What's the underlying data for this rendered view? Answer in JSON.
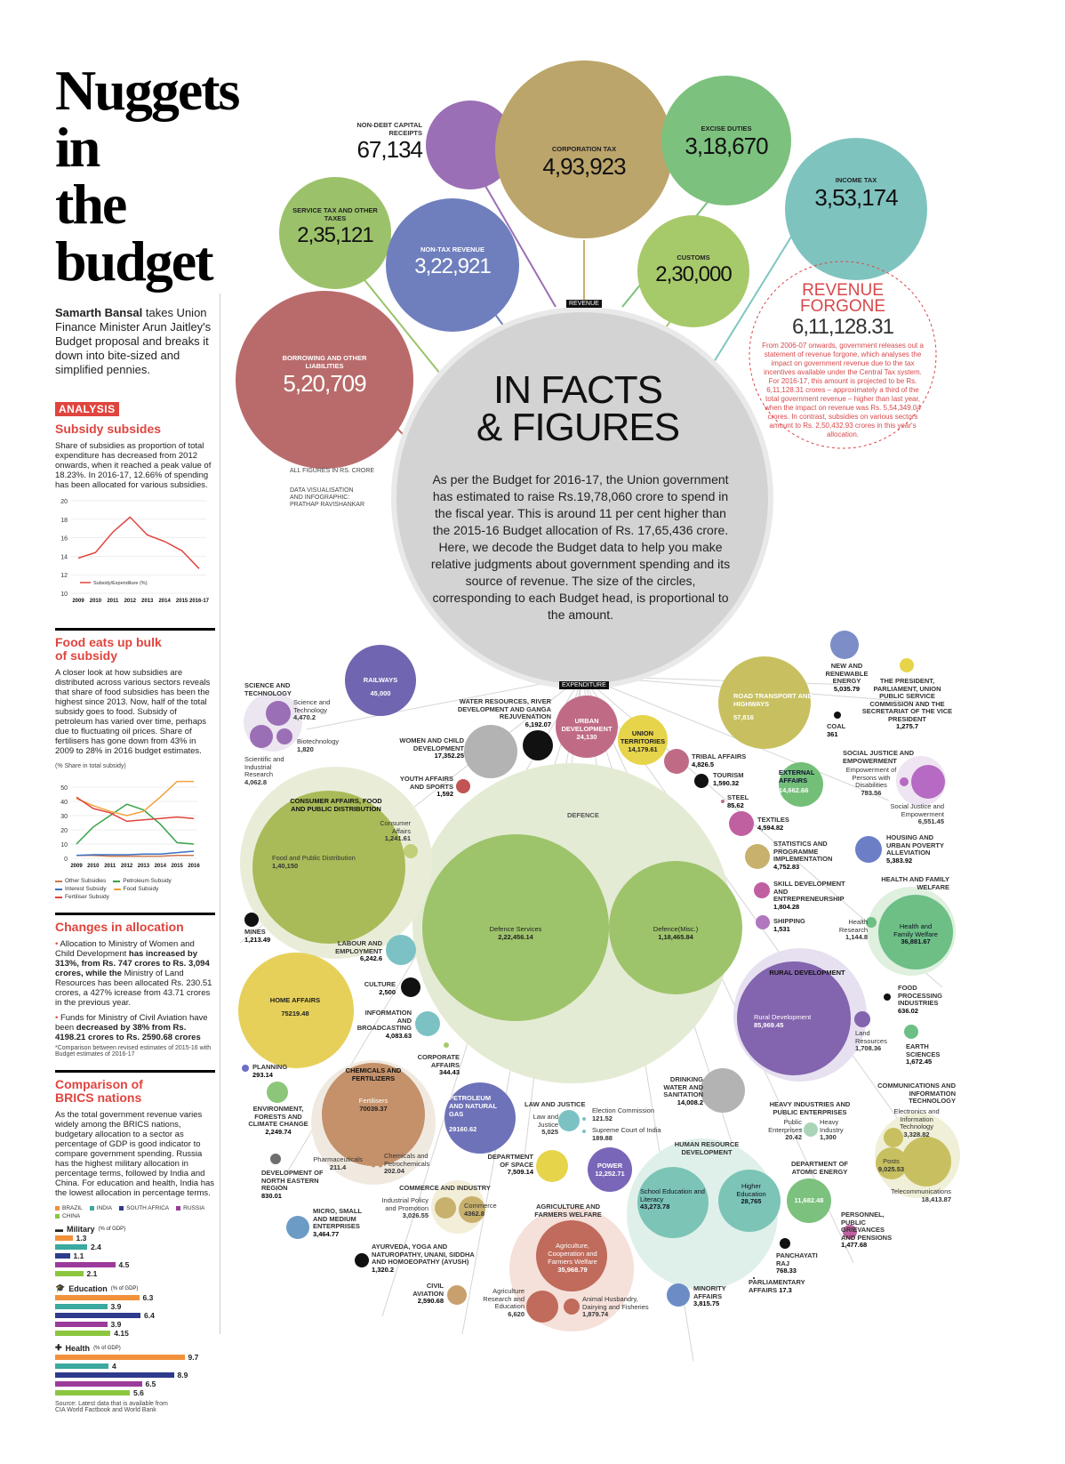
{
  "sidebar": {
    "title_line1": "Nuggets in",
    "title_line2": "the budget",
    "byline_name": "Samarth Bansal",
    "byline_rest": " takes Union Finance Minister Arun Jaitley's Budget proposal and breaks it down into bite-sized and simplified pennies.",
    "analysis_tag": "ANALYSIS",
    "subsidy": {
      "title": "Subsidy subsides",
      "text": "Share of subsidies as proportion of total expenditure has decreased from 2012 onwards, when it reached a peak value of 18.23%. In 2016-17, 12.66% of spending has been allocated for various subsidies.",
      "legend": "Subsidy/Expenditure (%)",
      "color": "#e0443e",
      "years": [
        "2009",
        "2010",
        "2011",
        "2012",
        "2013",
        "2014",
        "2015",
        "2016-17"
      ],
      "values": [
        13.8,
        14.4,
        16.6,
        18.23,
        16.3,
        15.6,
        14.6,
        12.66
      ],
      "yticks": [
        "20",
        "18",
        "16",
        "14",
        "12",
        "10"
      ],
      "ylim": [
        10,
        20
      ]
    },
    "food": {
      "title_line1": "Food eats up bulk",
      "title_line2": "of subsidy",
      "text": "A closer look at how subsidies are distributed across various sectors reveals that share of food subsidies has been the highest since 2013. Now, half of the total subsidy goes to food. Subsidy of petroleum has varied over time, perhaps due to fluctuating oil prices. Share of fertilisers has gone down from 43% in 2009 to 28% in 2016 budget estimates.",
      "axis_label": "(% Share in total subsidy)",
      "yticks": [
        "50",
        "40",
        "30",
        "20",
        "10",
        "0"
      ],
      "ylim": [
        0,
        60
      ],
      "years": [
        "2009",
        "2010",
        "2011",
        "2012",
        "2013",
        "2014",
        "2015",
        "2016"
      ],
      "series": [
        {
          "name": "Other Subsidies",
          "color": "#c9774a",
          "values": [
            2,
            2,
            1.5,
            1.5,
            1.5,
            1.5,
            2,
            2
          ]
        },
        {
          "name": "Petroleum Subsidy",
          "color": "#3aa24a",
          "values": [
            10,
            22,
            30,
            38,
            34,
            24,
            11,
            10
          ]
        },
        {
          "name": "Interest Subsidy",
          "color": "#3b6fc4",
          "values": [
            2,
            2.5,
            2.5,
            2.5,
            3,
            3,
            4,
            5
          ]
        },
        {
          "name": "Food Subsidy",
          "color": "#f2a13c",
          "values": [
            42,
            37,
            33,
            30,
            33,
            43,
            54,
            54
          ]
        },
        {
          "name": "Fertiliser Subsidy",
          "color": "#e0443e",
          "values": [
            43,
            35,
            32,
            26,
            27,
            28,
            29,
            28
          ]
        }
      ]
    },
    "changes": {
      "title": "Changes in allocation",
      "p1_a": "Allocation to Ministry of Women and Child Development ",
      "p1_b": "has increased by 313%, from Rs. 747 crores to Rs. 3,094 crores, while the",
      "p1_c": " Ministry of Land Resources has been allocated Rs. 230.51 crores, a 427% icrease from 43.71 crores in the previous year.",
      "p2_a": "Funds for Ministry of Civil Aviation have been ",
      "p2_b": "decreased by 38% from Rs. 4198.21 crores to Rs. 2590.68 crores",
      "note": "*Comparison between revised estimates of 2015-16 with Budget estimates of 2016-17"
    },
    "brics": {
      "title_line1": "Comparison of",
      "title_line2": "BRICS nations",
      "text": "As the total government revenue varies widely among the BRICS nations, budgetary allocation to a sector as percentage of GDP is good indicator to compare government spending. Russia has the highest military allocation in percentage terms, followed by India and China. For education and health, India has the lowest allocation in percentage terms.",
      "countries": [
        {
          "name": "BRAZIL",
          "color": "#f2913c"
        },
        {
          "name": "INDIA",
          "color": "#3aa99f"
        },
        {
          "name": "SOUTH AFRICA",
          "color": "#2e3a8c"
        },
        {
          "name": "RUSSIA",
          "color": "#9b3b9b"
        },
        {
          "name": "CHINA",
          "color": "#8cc63f"
        }
      ],
      "pct_label": "(% of GDP)",
      "military": {
        "label": "Military",
        "values": [
          "1.3",
          "2.4",
          "1.1",
          "4.5",
          "2.1"
        ],
        "nums": [
          1.3,
          2.4,
          1.1,
          4.5,
          2.1
        ]
      },
      "education": {
        "label": "Education",
        "values": [
          "6.3",
          "3.9",
          "6.4",
          "3.9",
          "4.15"
        ],
        "nums": [
          6.3,
          3.9,
          6.4,
          3.9,
          4.15
        ]
      },
      "health": {
        "label": "Health",
        "values": [
          "9.7",
          "4",
          "8.9",
          "6.5",
          "5.6"
        ],
        "nums": [
          9.7,
          4,
          8.9,
          6.5,
          5.6
        ]
      },
      "source": "Source: Latest data that is available from CIA World Factbook and World Bank"
    }
  },
  "center": {
    "facts_line1": "IN FACTS",
    "facts_line2": "& FIGURES",
    "text": "As per the Budget for 2016-17, the Union government has estimated to raise Rs.19,78,060 crore to spend in the fiscal year. This is around 11 per cent higher than the 2015-16 Budget allocation of Rs. 17,65,436 crore. Here, we decode the Budget data to help you make relative judgments about government spending and its source of revenue. The size of the circles, corresponding to each Budget head, is proportional to the amount.",
    "revenue_tag": "REVENUE",
    "expenditure_tag": "EXPENDITURE",
    "all_figures": "ALL FIGURES IN RS. CRORE",
    "credit_1": "DATA VISUALISATION",
    "credit_2": "AND INFOGRAPHIC:",
    "credit_3": "PRATHAP RAVISHANKAR"
  },
  "revenue": {
    "non_debt_label": "NON-DEBT CAPITAL RECEIPTS",
    "non_debt_value": "67,134",
    "corp_label": "CORPORATION TAX",
    "corp_value": "4,93,923",
    "excise_label": "EXCISE DUTIES",
    "excise_value": "3,18,670",
    "income_label": "INCOME TAX",
    "income_value": "3,53,174",
    "service_label": "SERVICE TAX AND OTHER TAXES",
    "service_value": "2,35,121",
    "nontax_label": "NON-TAX REVENUE",
    "nontax_value": "3,22,921",
    "customs_label": "CUSTOMS",
    "customs_value": "2,30,000",
    "borrow_label": "BORROWING AND OTHER LIABILITIES",
    "borrow_value": "5,20,709",
    "forgone_line1": "REVENUE",
    "forgone_line2": "FORGONE",
    "forgone_value": "6,11,128.31",
    "forgone_text": "From 2006-07 onwards, government releases out a statement of revenue forgone, which analyses the impact on government revenue due to the tax incentives available under the Central Tax system. For 2016-17, this amount is projected to be Rs. 6,11,128.31 crores – approximately a third of the total government revenue – higher than last year, when the impact on revenue was Rs. 5,54,349.04 crores. In contrast, subsidies on various sectors amount to Rs. 2,50,432.93 crores in this year's allocation."
  },
  "expenditure": {
    "defence": "DEFENCE",
    "defence_services": "Defence Services",
    "defence_services_v": "2,22,456.14",
    "defence_misc": "Defence(Misc.)",
    "defence_misc_v": "1,18,465.84",
    "railways": "RAILWAYS",
    "railways_v": "45,000",
    "science": "SCIENCE AND TECHNOLOGY",
    "science_tech": "Science and Technology",
    "science_tech_v": "4,470.2",
    "biotech": "Biotechnology",
    "biotech_v": "1,820",
    "sir": "Scientific and Industrial Research",
    "sir_v": "4,062.8",
    "water": "WATER RESOURCES, RIVER DEVELOPMENT AND GANGA REJUVENATION",
    "water_v": "6,192.07",
    "urban": "URBAN DEVELOPMENT",
    "urban_v": "24,130",
    "ut": "UNION TERRITORIES",
    "ut_v": "14,179.61",
    "women": "WOMEN AND CHILD DEVELOPMENT",
    "women_v": "17,352.25",
    "youth": "YOUTH AFFAIRS AND SPORTS",
    "youth_v": "1,592",
    "tribal": "TRIBAL AFFAIRS",
    "tribal_v": "4,826.5",
    "tourism": "TOURISM",
    "tourism_v": "1,590.32",
    "steel": "STEEL",
    "steel_v": "85.62",
    "textiles": "TEXTILES",
    "textiles_v": "4,594.82",
    "stats": "STATISTICS AND PROGRAMME IMPLEMENTATION",
    "stats_v": "4,752.83",
    "skill": "SKILL DEVELOPMENT AND ENTREPRENEURSHIP",
    "skill_v": "1,804.28",
    "shipping": "SHIPPING",
    "shipping_v": "1,531",
    "road": "ROAD TRANSPORT AND HIGHWAYS",
    "road_v": "57,816",
    "renew": "NEW AND RENEWABLE ENERGY",
    "renew_v": "5,035.79",
    "president": "THE PRESIDENT, PARLIAMENT, UNION PUBLIC SERVICE COMMISSION AND THE SECRETARIAT OF THE VICE PRESIDENT",
    "president_v": "1,275.7",
    "coal": "COAL",
    "coal_v": "361",
    "external": "EXTERNAL AFFAIRS",
    "external_v": "14,662.66",
    "social": "SOCIAL JUSTICE AND EMPOWERMENT",
    "disab": "Empowerment of Persons with Disabilities",
    "disab_v": "783.56",
    "socialj": "Social Justice and Empowerment",
    "socialj_v": "6,551.45",
    "housing": "HOUSING AND URBAN POVERTY ALLEVIATION",
    "housing_v": "5,383.92",
    "health": "HEALTH AND FAMILY WELFARE",
    "health_r": "Health Research",
    "health_r_v": "1,144.8",
    "health_fw": "Health and Family Welfare",
    "health_fw_v": "36,881.67",
    "consumer": "CONSUMER AFFAIRS, FOOD AND PUBLIC DISTRIBUTION",
    "consumer_a": "Consumer Affairs",
    "consumer_a_v": "1,241.61",
    "food_pd": "Food and Public Distribution",
    "food_pd_v": "1,40,150",
    "mines": "MINES",
    "mines_v": "1,213.49",
    "labour": "LABOUR AND EMPLOYMENT",
    "labour_v": "6,242.6",
    "culture": "CULTURE",
    "culture_v": "2,500",
    "home": "HOME AFFAIRS",
    "home_v": "75219.48",
    "info": "INFORMATION AND BROADCASTING",
    "info_v": "4,083.63",
    "corporate": "CORPORATE AFFAIRS",
    "corporate_v": "344.43",
    "planning": "PLANNING",
    "planning_v": "293.14",
    "env": "ENVIRONMENT, FORESTS AND CLIMATE CHANGE",
    "env_v": "2,249.74",
    "chem": "CHEMICALS AND FERTILIZERS",
    "fert": "Fertilisers",
    "fert_v": "70039.37",
    "pharma": "Pharmaceuticals",
    "pharma_v": "211.4",
    "chempetro": "Chemicals and Petrochemicals",
    "chempetro_v": "202.04",
    "petro": "PETROLEUM AND NATURAL GAS",
    "petro_v": "29160.62",
    "rural": "RURAL DEVELOPMENT",
    "rural_d": "Rural Development",
    "rural_d_v": "85,969.45",
    "land": "Land Resources",
    "land_v": "1,708.36",
    "fpi": "FOOD PROCESSING INDUSTRIES",
    "fpi_v": "636.02",
    "earth": "EARTH SCIENCES",
    "earth_v": "1,672.45",
    "drinking": "DRINKING WATER AND SANITATION",
    "drinking_v": "14,008.2",
    "heavy": "HEAVY INDUSTRIES AND PUBLIC ENTERPRISES",
    "public_ent": "Public Enterprises",
    "public_ent_v": "20.42",
    "heavy_ind": "Heavy Industry",
    "heavy_ind_v": "1,300",
    "comm": "COMMUNICATIONS AND INFORMATION TECHNOLOGY",
    "eit": "Electronics and Information Technology",
    "eit_v": "3,328.82",
    "posts": "Posts",
    "posts_v": "9,025.53",
    "telecom": "Telecommunications",
    "telecom_v": "18,413.87",
    "law": "LAW AND JUSTICE",
    "law_j": "Law and Justice",
    "law_j_v": "5,025",
    "election": "Election Commission",
    "election_v": "121.52",
    "supreme": "Supreme Court of India",
    "supreme_v": "189.88",
    "northeast": "DEVELOPMENT OF NORTH EASTERN REGION",
    "northeast_v": "830.01",
    "space": "DEPARTMENT OF SPACE",
    "space_v": "7,509.14",
    "power": "POWER",
    "power_v": "12,252.71",
    "hrd": "HUMAN RESOURCE DEVELOPMENT",
    "school": "School Education and Literacy",
    "school_v": "43,273.78",
    "higher": "Higher Education",
    "higher_v": "28,765",
    "atomic": "DEPARTMENT OF ATOMIC ENERGY",
    "atomic_v": "11,682.48",
    "commerce": "COMMERCE AND INDUSTRY",
    "ipp": "Industrial Policy and Promotion",
    "ipp_v": "3,026.55",
    "comm_c": "Commerce",
    "comm_c_v": "4362.8",
    "msme": "MICRO, SMALL AND MEDIUM ENTERPRISES",
    "msme_v": "3,464.77",
    "agri": "AGRICULTURE AND FARMERS WELFARE",
    "agri_c": "Agriculture, Cooperation and Farmers Welfare",
    "agri_c_v": "35,968.79",
    "agri_r": "Agriculture Research and Education",
    "agri_r_v": "6,620",
    "animal": "Animal Husbandry, Dairying and Fisheries",
    "animal_v": "1,879.74",
    "ayush": "AYURVEDA, YOGA AND NATUROPATHY, UNANI, SIDDHA AND HOMOEOPATHY (AYUSH)",
    "ayush_v": "1,320.2",
    "civil": "CIVIL AVIATION",
    "civil_v": "2,590.68",
    "minority": "MINORITY AFFAIRS",
    "minority_v": "3,815.75",
    "personnel": "PERSONNEL, PUBLIC GRIEVANCES AND PENSIONS",
    "personnel_v": "1,477.68",
    "panchayati": "PANCHAYATI RAJ",
    "panchayati_v": "768.33",
    "parliamentary": "PARLIAMENTARY AFFAIRS",
    "parliamentary_v": "17.3"
  }
}
